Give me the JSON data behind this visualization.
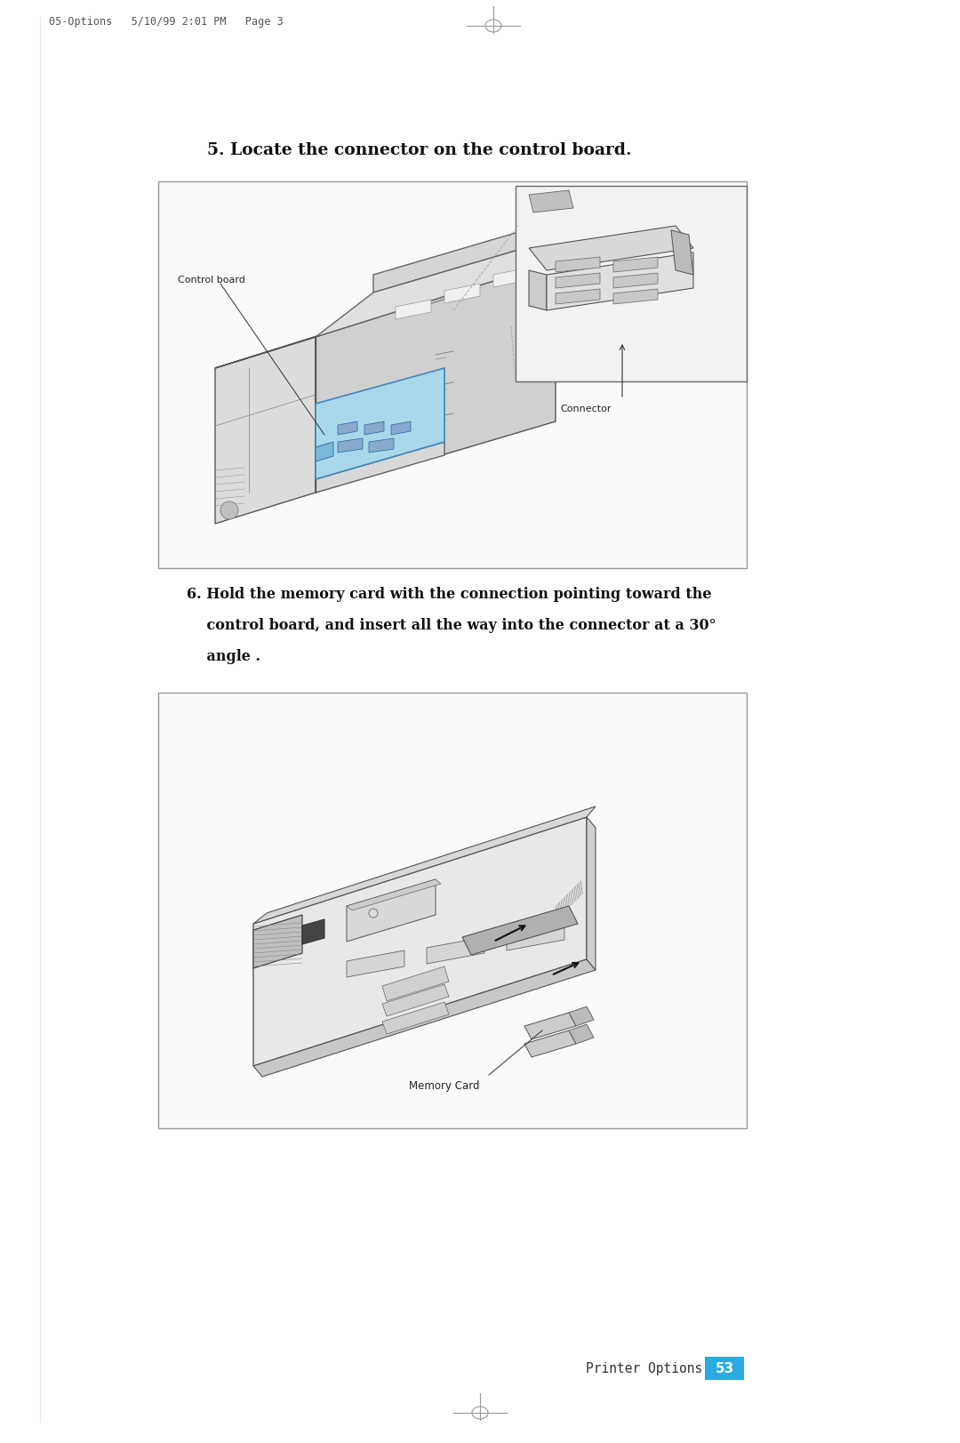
{
  "bg_color": "#ffffff",
  "page_width": 10.8,
  "page_height": 16.24,
  "header_text": "05-Options   5/10/99 2:01 PM   Page 3",
  "header_fontsize": 8.5,
  "step5_title": "5. Locate the connector on the control board.",
  "step5_title_fontsize": 13.5,
  "step6_line1": "6. Hold the memory card with the connection pointing toward the",
  "step6_line2": "    control board, and insert all the way into the connector at a 30°",
  "step6_line3": "    angle .",
  "step6_fontsize": 11.5,
  "label_control_board": "Control board",
  "label_connector": "Connector",
  "label_memory_card": "Memory Card",
  "footer_text": "Printer Options",
  "footer_page": "53",
  "footer_box_color": "#29ABE2",
  "crosshair_color": "#999999",
  "box_edge_color": "#888888",
  "light_gray": "#f0f0f0",
  "mid_gray": "#cccccc",
  "dark_gray": "#888888",
  "blue_fill": "#a8d8ea",
  "blue_stroke": "#5599cc"
}
